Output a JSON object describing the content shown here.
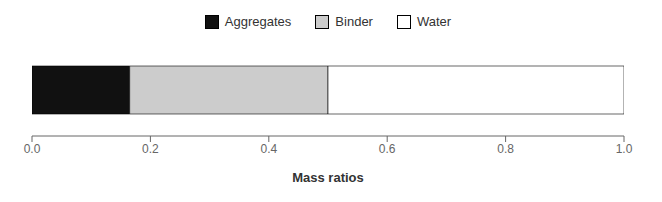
{
  "chart_data": {
    "type": "bar",
    "orientation": "horizontal",
    "stacked": true,
    "xlabel": "Mass ratios",
    "categories": [
      null
    ],
    "series": [
      {
        "name": "Aggregates",
        "color": "#111111",
        "values": [
          0.165
        ]
      },
      {
        "name": "Binder",
        "color": "#cccccc",
        "values": [
          0.335
        ]
      },
      {
        "name": "Water",
        "color": "#ffffff",
        "values": [
          0.5
        ]
      }
    ],
    "xlim": [
      0.0,
      1.0
    ],
    "xticks": [
      {
        "value": 0.0,
        "label": "0.0"
      },
      {
        "value": 0.2,
        "label": "0.2"
      },
      {
        "value": 0.4,
        "label": "0.4"
      },
      {
        "value": 0.6,
        "label": "0.6"
      },
      {
        "value": 0.8,
        "label": "0.8"
      },
      {
        "value": 1.0,
        "label": "1.0"
      }
    ],
    "tick_labels": "x",
    "legend": "top"
  }
}
